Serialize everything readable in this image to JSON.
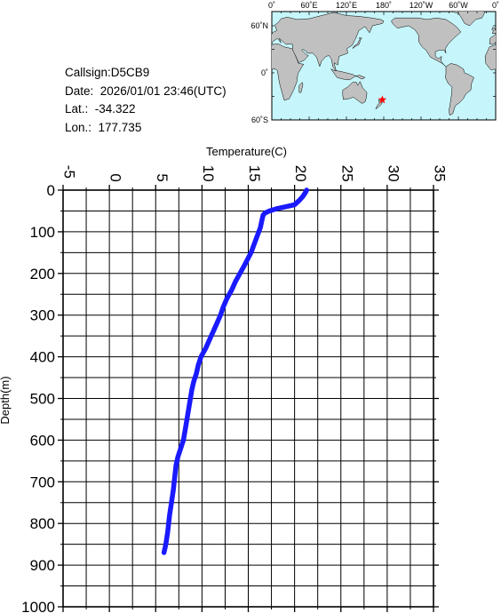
{
  "station": {
    "callsign": "Callsign:D5CB9",
    "date": "Date:  2026/01/01 23:46(UTC)",
    "lat": "Lat.:  -34.322",
    "lon": "Lon.:  177.735"
  },
  "map": {
    "top_labels": [
      "0˚",
      "60˚E",
      "120˚E",
      "180˚",
      "120˚W",
      "60˚W",
      "0˚"
    ],
    "side_labels": [
      "60˚N",
      "0˚",
      "60˚S"
    ],
    "marker": {
      "lat": -34.322,
      "lon": 177.735
    },
    "colors": {
      "ocean": "#c6f6fb",
      "land": "#c0c0c0",
      "marker": "#ff0000"
    }
  },
  "chart_data": {
    "type": "line",
    "xlabel": "Temperature(C)",
    "ylabel": "Depth(m)",
    "xlim": [
      -5,
      35
    ],
    "ylim": [
      0,
      1000
    ],
    "y_inverted": true,
    "x_ticks": [
      -5,
      0,
      5,
      10,
      15,
      20,
      25,
      30,
      35
    ],
    "y_ticks": [
      0,
      100,
      200,
      300,
      400,
      500,
      600,
      700,
      800,
      900,
      1000
    ],
    "x_tick_labels": [
      "-5",
      "0",
      "5",
      "10",
      "15",
      "20",
      "25",
      "30",
      "35"
    ],
    "y_tick_labels": [
      "0",
      "100",
      "200",
      "300",
      "400",
      "500",
      "600",
      "700",
      "800",
      "900",
      "1000"
    ],
    "grid": true,
    "series": [
      {
        "color": "#1a1aff",
        "x": [
          21.3,
          21.2,
          20.9,
          20.5,
          20.0,
          19.0,
          18.0,
          17.3,
          16.8,
          16.6,
          16.5,
          16.3,
          15.8,
          15.3,
          14.6,
          14.1,
          13.6,
          13.2,
          12.7,
          12.3,
          12.0,
          11.6,
          11.2,
          10.8,
          10.4,
          9.9,
          9.6,
          9.4,
          9.1,
          8.9,
          8.6,
          8.3,
          8.0,
          7.7,
          7.4,
          7.2,
          7.0,
          6.9,
          6.7,
          6.5,
          6.3,
          6.1,
          5.9
        ],
        "y": [
          0,
          5,
          15,
          25,
          35,
          40,
          45,
          50,
          55,
          60,
          70,
          90,
          120,
          150,
          180,
          200,
          220,
          240,
          260,
          280,
          300,
          320,
          340,
          360,
          380,
          400,
          420,
          440,
          460,
          480,
          520,
          560,
          600,
          620,
          640,
          660,
          700,
          720,
          750,
          780,
          820,
          850,
          870
        ]
      }
    ]
  }
}
